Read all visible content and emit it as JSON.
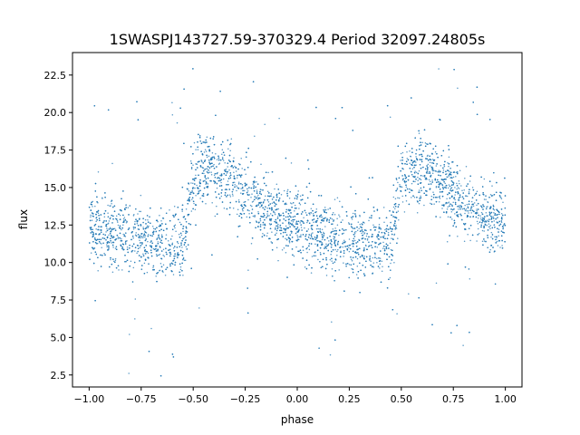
{
  "chart_data": {
    "type": "scatter",
    "title": "1SWASPJ143727.59-370329.4 Period 32097.24805s",
    "xlabel": "phase",
    "ylabel": "flux",
    "xlim": [
      -1.08,
      1.08
    ],
    "ylim": [
      1.7,
      24.0
    ],
    "x_ticks": [
      -1.0,
      -0.75,
      -0.5,
      -0.25,
      0.0,
      0.25,
      0.5,
      0.75,
      1.0
    ],
    "x_tick_labels": [
      "−1.00",
      "−0.75",
      "−0.50",
      "−0.25",
      "0.00",
      "0.25",
      "0.50",
      "0.75",
      "1.00"
    ],
    "y_ticks": [
      2.5,
      5.0,
      7.5,
      10.0,
      12.5,
      15.0,
      17.5,
      20.0,
      22.5
    ],
    "y_tick_labels": [
      "2.5",
      "5.0",
      "7.5",
      "10.0",
      "12.5",
      "15.0",
      "17.5",
      "20.0",
      "22.5"
    ],
    "grid": false,
    "point_color": "#1f77b4",
    "series": [
      {
        "x": [
          -1.0,
          -0.95,
          -0.9,
          -0.85,
          -0.8,
          -0.75,
          -0.7,
          -0.65,
          -0.6,
          -0.55,
          -0.5,
          -0.45,
          -0.4,
          -0.35,
          -0.3,
          -0.25,
          -0.2,
          -0.15,
          -0.1,
          -0.05,
          0.0,
          0.05,
          0.1,
          0.15,
          0.2,
          0.25,
          0.3,
          0.35,
          0.4,
          0.45,
          0.5,
          0.55,
          0.6,
          0.65,
          0.7,
          0.75,
          0.8,
          0.85,
          0.9,
          0.95,
          1.0
        ],
        "y": [
          12.6,
          12.2,
          12.0,
          11.9,
          11.7,
          11.5,
          11.4,
          11.3,
          11.2,
          11.4,
          15.5,
          16.4,
          16.2,
          15.8,
          15.2,
          14.6,
          14.1,
          13.6,
          13.1,
          12.7,
          12.5,
          12.2,
          12.0,
          11.9,
          11.7,
          11.5,
          11.4,
          11.3,
          11.2,
          11.4,
          15.5,
          16.4,
          16.2,
          15.8,
          15.2,
          14.6,
          14.1,
          13.6,
          13.1,
          12.7,
          12.6
        ]
      }
    ]
  }
}
